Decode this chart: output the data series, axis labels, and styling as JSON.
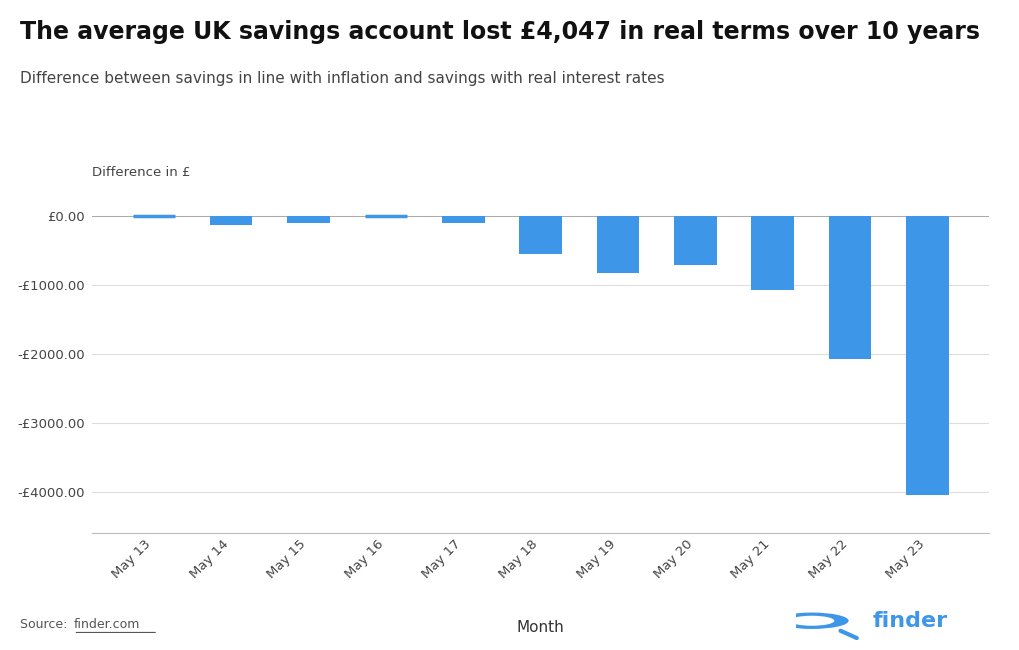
{
  "title": "The average UK savings account lost £4,047 in real terms over 10 years",
  "subtitle": "Difference between savings in line with inflation and savings with real interest rates",
  "ylabel_label": "Difference in £",
  "xlabel": "Month",
  "categories": [
    "May 13",
    "May 14",
    "May 15",
    "May 16",
    "May 17",
    "May 18",
    "May 19",
    "May 20",
    "May 21",
    "May 22",
    "May 23"
  ],
  "values": [
    -15,
    -130,
    -100,
    -8,
    -110,
    -550,
    -830,
    -720,
    -1070,
    -2080,
    -4047
  ],
  "bar_color": "#3d96e8",
  "background_color": "#ffffff",
  "grid_color": "#dddddd",
  "ylim": [
    -4600,
    300
  ],
  "yticks": [
    0,
    -1000,
    -2000,
    -3000,
    -4000
  ],
  "ytick_labels": [
    "£0.00",
    "-£1000.00",
    "-£2000.00",
    "-£3000.00",
    "-£4000.00"
  ],
  "source_text": "Source: finder.com",
  "title_fontsize": 17,
  "subtitle_fontsize": 11,
  "tick_fontsize": 9.5,
  "xlabel_fontsize": 11
}
